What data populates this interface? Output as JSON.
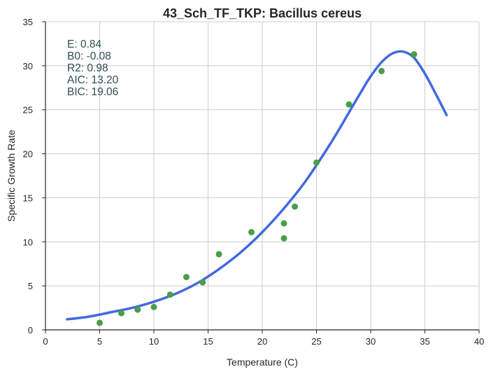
{
  "chart_data": {
    "type": "scatter",
    "title": "43_Sch_TF_TKP: Bacillus cereus",
    "xlabel": "Temperature (C)",
    "ylabel": "Specific Growth Rate",
    "xlim": [
      0,
      40
    ],
    "ylim": [
      0,
      35
    ],
    "xticks": [
      0,
      5,
      10,
      15,
      20,
      25,
      30,
      35,
      40
    ],
    "yticks": [
      0,
      5,
      10,
      15,
      20,
      25,
      30,
      35
    ],
    "grid": true,
    "annotations": [
      "E:  0.84",
      "B0:  -0.08",
      "R2:  0.98",
      "AIC: 13.20",
      "BIC: 19.06"
    ],
    "colors": {
      "points": "#4a9e48",
      "curve": "#4169e1",
      "annotation": "#2f4f4f"
    },
    "points": {
      "x": [
        5,
        7,
        8.5,
        10,
        11.5,
        13,
        14.5,
        16,
        19,
        22,
        22,
        23,
        25,
        28,
        31,
        34
      ],
      "y": [
        0.8,
        1.9,
        2.3,
        2.6,
        4.0,
        6.0,
        5.4,
        8.6,
        11.1,
        12.1,
        10.4,
        14.0,
        19.0,
        25.6,
        29.4,
        31.3
      ]
    },
    "fit_curve": {
      "x": [
        2,
        4,
        6,
        8,
        10,
        12,
        14,
        16,
        18,
        20,
        22,
        24,
        26,
        27,
        28,
        29,
        30,
        31,
        32,
        33,
        34,
        35,
        36,
        37
      ],
      "y": [
        1.2,
        1.5,
        2.0,
        2.5,
        3.2,
        4.1,
        5.3,
        6.9,
        8.8,
        11.1,
        13.8,
        16.9,
        20.6,
        22.6,
        24.7,
        26.8,
        28.8,
        30.4,
        31.4,
        31.6,
        30.9,
        29.1,
        26.8,
        24.4
      ]
    }
  }
}
